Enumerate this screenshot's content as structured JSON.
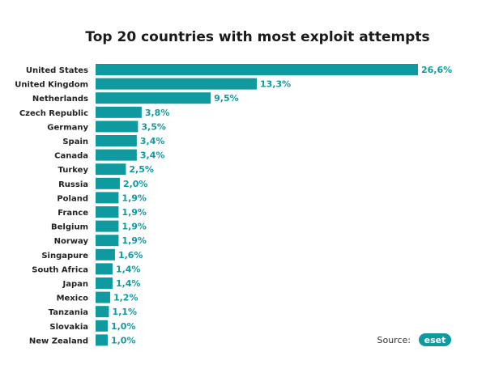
{
  "chart_data": {
    "type": "bar",
    "orientation": "horizontal",
    "title": "Top 20 countries with most exploit attempts",
    "categories": [
      "United States",
      "United Kingdom",
      "Netherlands",
      "Czech Republic",
      "Germany",
      "Spain",
      "Canada",
      "Turkey",
      "Russia",
      "Poland",
      "France",
      "Belgium",
      "Norway",
      "Singapure",
      "South Africa",
      "Japan",
      "Mexico",
      "Tanzania",
      "Slovakia",
      "New Zealand"
    ],
    "values": [
      26.6,
      13.3,
      9.5,
      3.8,
      3.5,
      3.4,
      3.4,
      2.5,
      2.0,
      1.9,
      1.9,
      1.9,
      1.9,
      1.6,
      1.4,
      1.4,
      1.2,
      1.1,
      1.0,
      1.0
    ],
    "value_labels": [
      "26,6%",
      "13,3%",
      "9,5%",
      "3,8%",
      "3,5%",
      "3,4%",
      "3,4%",
      "2,5%",
      "2,0%",
      "1,9%",
      "1,9%",
      "1,9%",
      "1,9%",
      "1,6%",
      "1,4%",
      "1,4%",
      "1,2%",
      "1,1%",
      "1,0%",
      "1,0%"
    ],
    "bar_color": "#0f9aa0",
    "label_color": "#0f9aa0",
    "grid": false,
    "legend": "none"
  },
  "source": {
    "label": "Source:",
    "brand": "eset",
    "brand_color": "#0f9aa0"
  }
}
